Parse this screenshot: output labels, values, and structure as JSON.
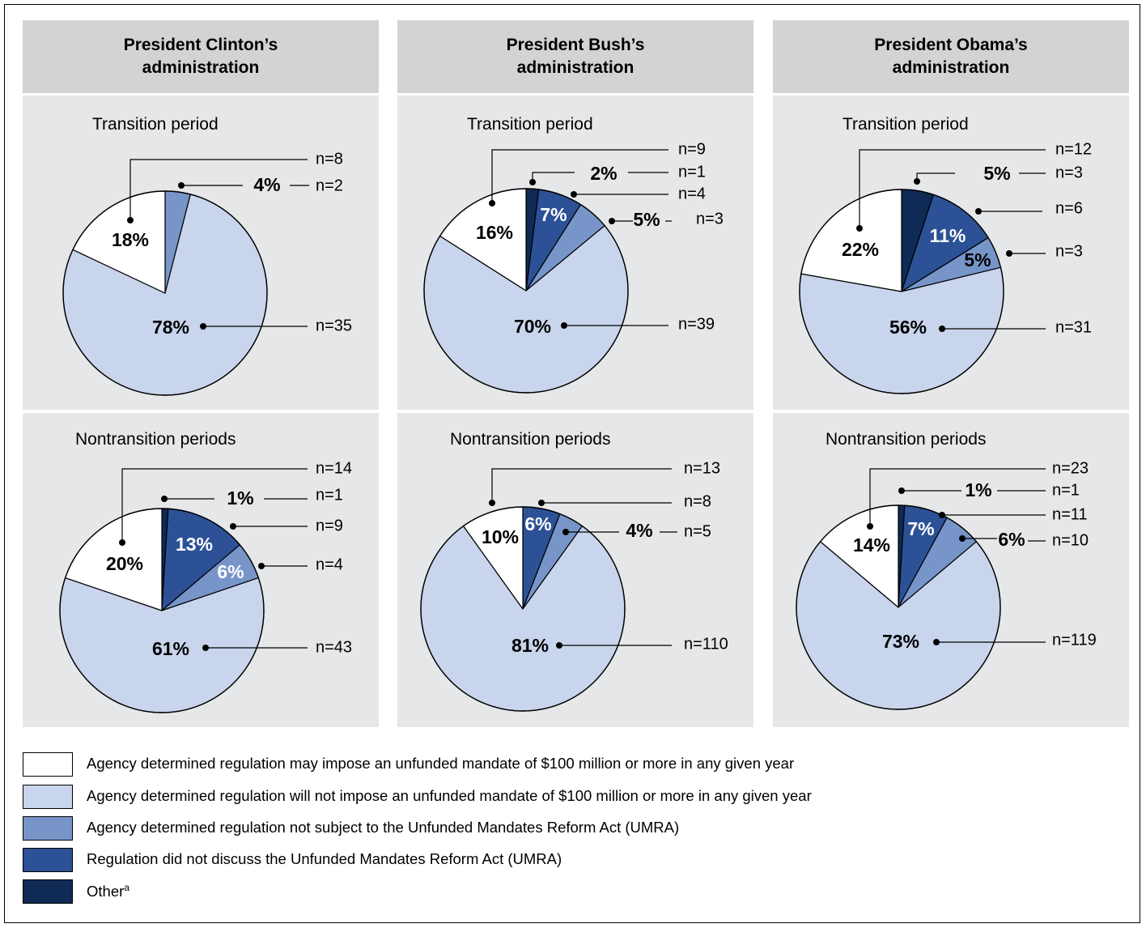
{
  "colors": {
    "may_impose": "#ffffff",
    "will_not_impose": "#c9d5ec",
    "not_subject": "#7795c9",
    "not_discuss": "#2c5196",
    "other": "#0e2a55",
    "header_bg": "#d1d3d4",
    "panel_bg": "#e6e7e8"
  },
  "columns": [
    {
      "title": "President Clinton’s administration"
    },
    {
      "title": "President Bush’s administration"
    },
    {
      "title": "President Obama’s administration"
    }
  ],
  "row_titles": [
    "Transition period",
    "Nontransition periods"
  ],
  "legend": [
    {
      "label": "Agency determined regulation may impose an unfunded mandate of $100 million or more in any given year",
      "color": "#ffffff"
    },
    {
      "label": "Agency determined regulation will not impose an unfunded mandate of $100 million or more in any given year",
      "color": "#c9d5ec"
    },
    {
      "label": "Agency determined regulation not subject to the Unfunded Mandates Reform Act (UMRA)",
      "color": "#7795c9"
    },
    {
      "label": "Regulation did not discuss the Unfunded Mandates Reform Act (UMRA)",
      "color": "#2c5196"
    },
    {
      "label": "Other",
      "superscript": "a",
      "color": "#0e2a55"
    }
  ],
  "chart_data": [
    {
      "type": "pie",
      "administration": "President Clinton’s administration",
      "period": "Transition period",
      "slices": [
        {
          "category": "Other",
          "value": 0,
          "n": "",
          "label": ""
        },
        {
          "category": "Regulation did not discuss the Unfunded Mandates Reform Act (UMRA)",
          "value": 0,
          "n": "",
          "label": ""
        },
        {
          "category": "Agency determined regulation not subject to the Unfunded Mandates Reform Act (UMRA)",
          "value": 4,
          "n": "n=2",
          "label": "4%"
        },
        {
          "category": "Agency determined regulation will not impose an unfunded mandate of $100 million or more in any given year",
          "value": 78,
          "n": "n=35",
          "label": "78%"
        },
        {
          "category": "Agency determined regulation may impose an unfunded mandate of $100 million or more in any given year",
          "value": 18,
          "n": "n=8",
          "label": "18%"
        }
      ]
    },
    {
      "type": "pie",
      "administration": "President Clinton’s administration",
      "period": "Nontransition periods",
      "slices": [
        {
          "category": "Other",
          "value": 1,
          "n": "n=1",
          "label": "1%"
        },
        {
          "category": "Regulation did not discuss the Unfunded Mandates Reform Act (UMRA)",
          "value": 13,
          "n": "n=9",
          "label": "13%"
        },
        {
          "category": "Agency determined regulation not subject to the Unfunded Mandates Reform Act (UMRA)",
          "value": 6,
          "n": "n=4",
          "label": "6%"
        },
        {
          "category": "Agency determined regulation will not impose an unfunded mandate of $100 million or more in any given year",
          "value": 61,
          "n": "n=43",
          "label": "61%"
        },
        {
          "category": "Agency determined regulation may impose an unfunded mandate of $100 million or more in any given year",
          "value": 20,
          "n": "n=14",
          "label": "20%"
        }
      ]
    },
    {
      "type": "pie",
      "administration": "President Bush’s administration",
      "period": "Transition period",
      "slices": [
        {
          "category": "Other",
          "value": 2,
          "n": "n=1",
          "label": "2%"
        },
        {
          "category": "Regulation did not discuss the Unfunded Mandates Reform Act (UMRA)",
          "value": 7,
          "n": "n=4",
          "label": "7%"
        },
        {
          "category": "Agency determined regulation not subject to the Unfunded Mandates Reform Act (UMRA)",
          "value": 5,
          "n": "n=3",
          "label": "5%"
        },
        {
          "category": "Agency determined regulation will not impose an unfunded mandate of $100 million or more in any given year",
          "value": 70,
          "n": "n=39",
          "label": "70%"
        },
        {
          "category": "Agency determined regulation may impose an unfunded mandate of $100 million or more in any given year",
          "value": 16,
          "n": "n=9",
          "label": "16%"
        }
      ]
    },
    {
      "type": "pie",
      "administration": "President Bush’s administration",
      "period": "Nontransition periods",
      "slices": [
        {
          "category": "Other",
          "value": 0,
          "n": "",
          "label": ""
        },
        {
          "category": "Regulation did not discuss the Unfunded Mandates Reform Act (UMRA)",
          "value": 6,
          "n": "n=8",
          "label": "6%"
        },
        {
          "category": "Agency determined regulation not subject to the Unfunded Mandates Reform Act (UMRA)",
          "value": 4,
          "n": "n=5",
          "label": "4%"
        },
        {
          "category": "Agency determined regulation will not impose an unfunded mandate of $100 million or more in any given year",
          "value": 81,
          "n": "n=110",
          "label": "81%"
        },
        {
          "category": "Agency determined regulation may impose an unfunded mandate of $100 million or more in any given year",
          "value": 10,
          "n": "n=13",
          "label": "10%"
        }
      ]
    },
    {
      "type": "pie",
      "administration": "President Obama’s administration",
      "period": "Transition period",
      "slices": [
        {
          "category": "Other",
          "value": 5,
          "n": "n=3",
          "label": "5%"
        },
        {
          "category": "Regulation did not discuss the Unfunded Mandates Reform Act (UMRA)",
          "value": 11,
          "n": "n=6",
          "label": "11%"
        },
        {
          "category": "Agency determined regulation not subject to the Unfunded Mandates Reform Act (UMRA)",
          "value": 5,
          "n": "n=3",
          "label": "5%"
        },
        {
          "category": "Agency determined regulation will not impose an unfunded mandate of $100 million or more in any given year",
          "value": 56,
          "n": "n=31",
          "label": "56%"
        },
        {
          "category": "Agency determined regulation may impose an unfunded mandate of $100 million or more in any given year",
          "value": 22,
          "n": "n=12",
          "label": "22%"
        }
      ]
    },
    {
      "type": "pie",
      "administration": "President Obama’s administration",
      "period": "Nontransition periods",
      "slices": [
        {
          "category": "Other",
          "value": 1,
          "n": "n=1",
          "label": "1%"
        },
        {
          "category": "Regulation did not discuss the Unfunded Mandates Reform Act (UMRA)",
          "value": 7,
          "n": "n=11",
          "label": "7%"
        },
        {
          "category": "Agency determined regulation not subject to the Unfunded Mandates Reform Act (UMRA)",
          "value": 6,
          "n": "n=10",
          "label": "6%"
        },
        {
          "category": "Agency determined regulation will not impose an unfunded mandate of $100 million or more in any given year",
          "value": 73,
          "n": "n=119",
          "label": "73%"
        },
        {
          "category": "Agency determined regulation may impose an unfunded mandate of $100 million or more in any given year",
          "value": 14,
          "n": "n=23",
          "label": "14%"
        }
      ]
    }
  ]
}
